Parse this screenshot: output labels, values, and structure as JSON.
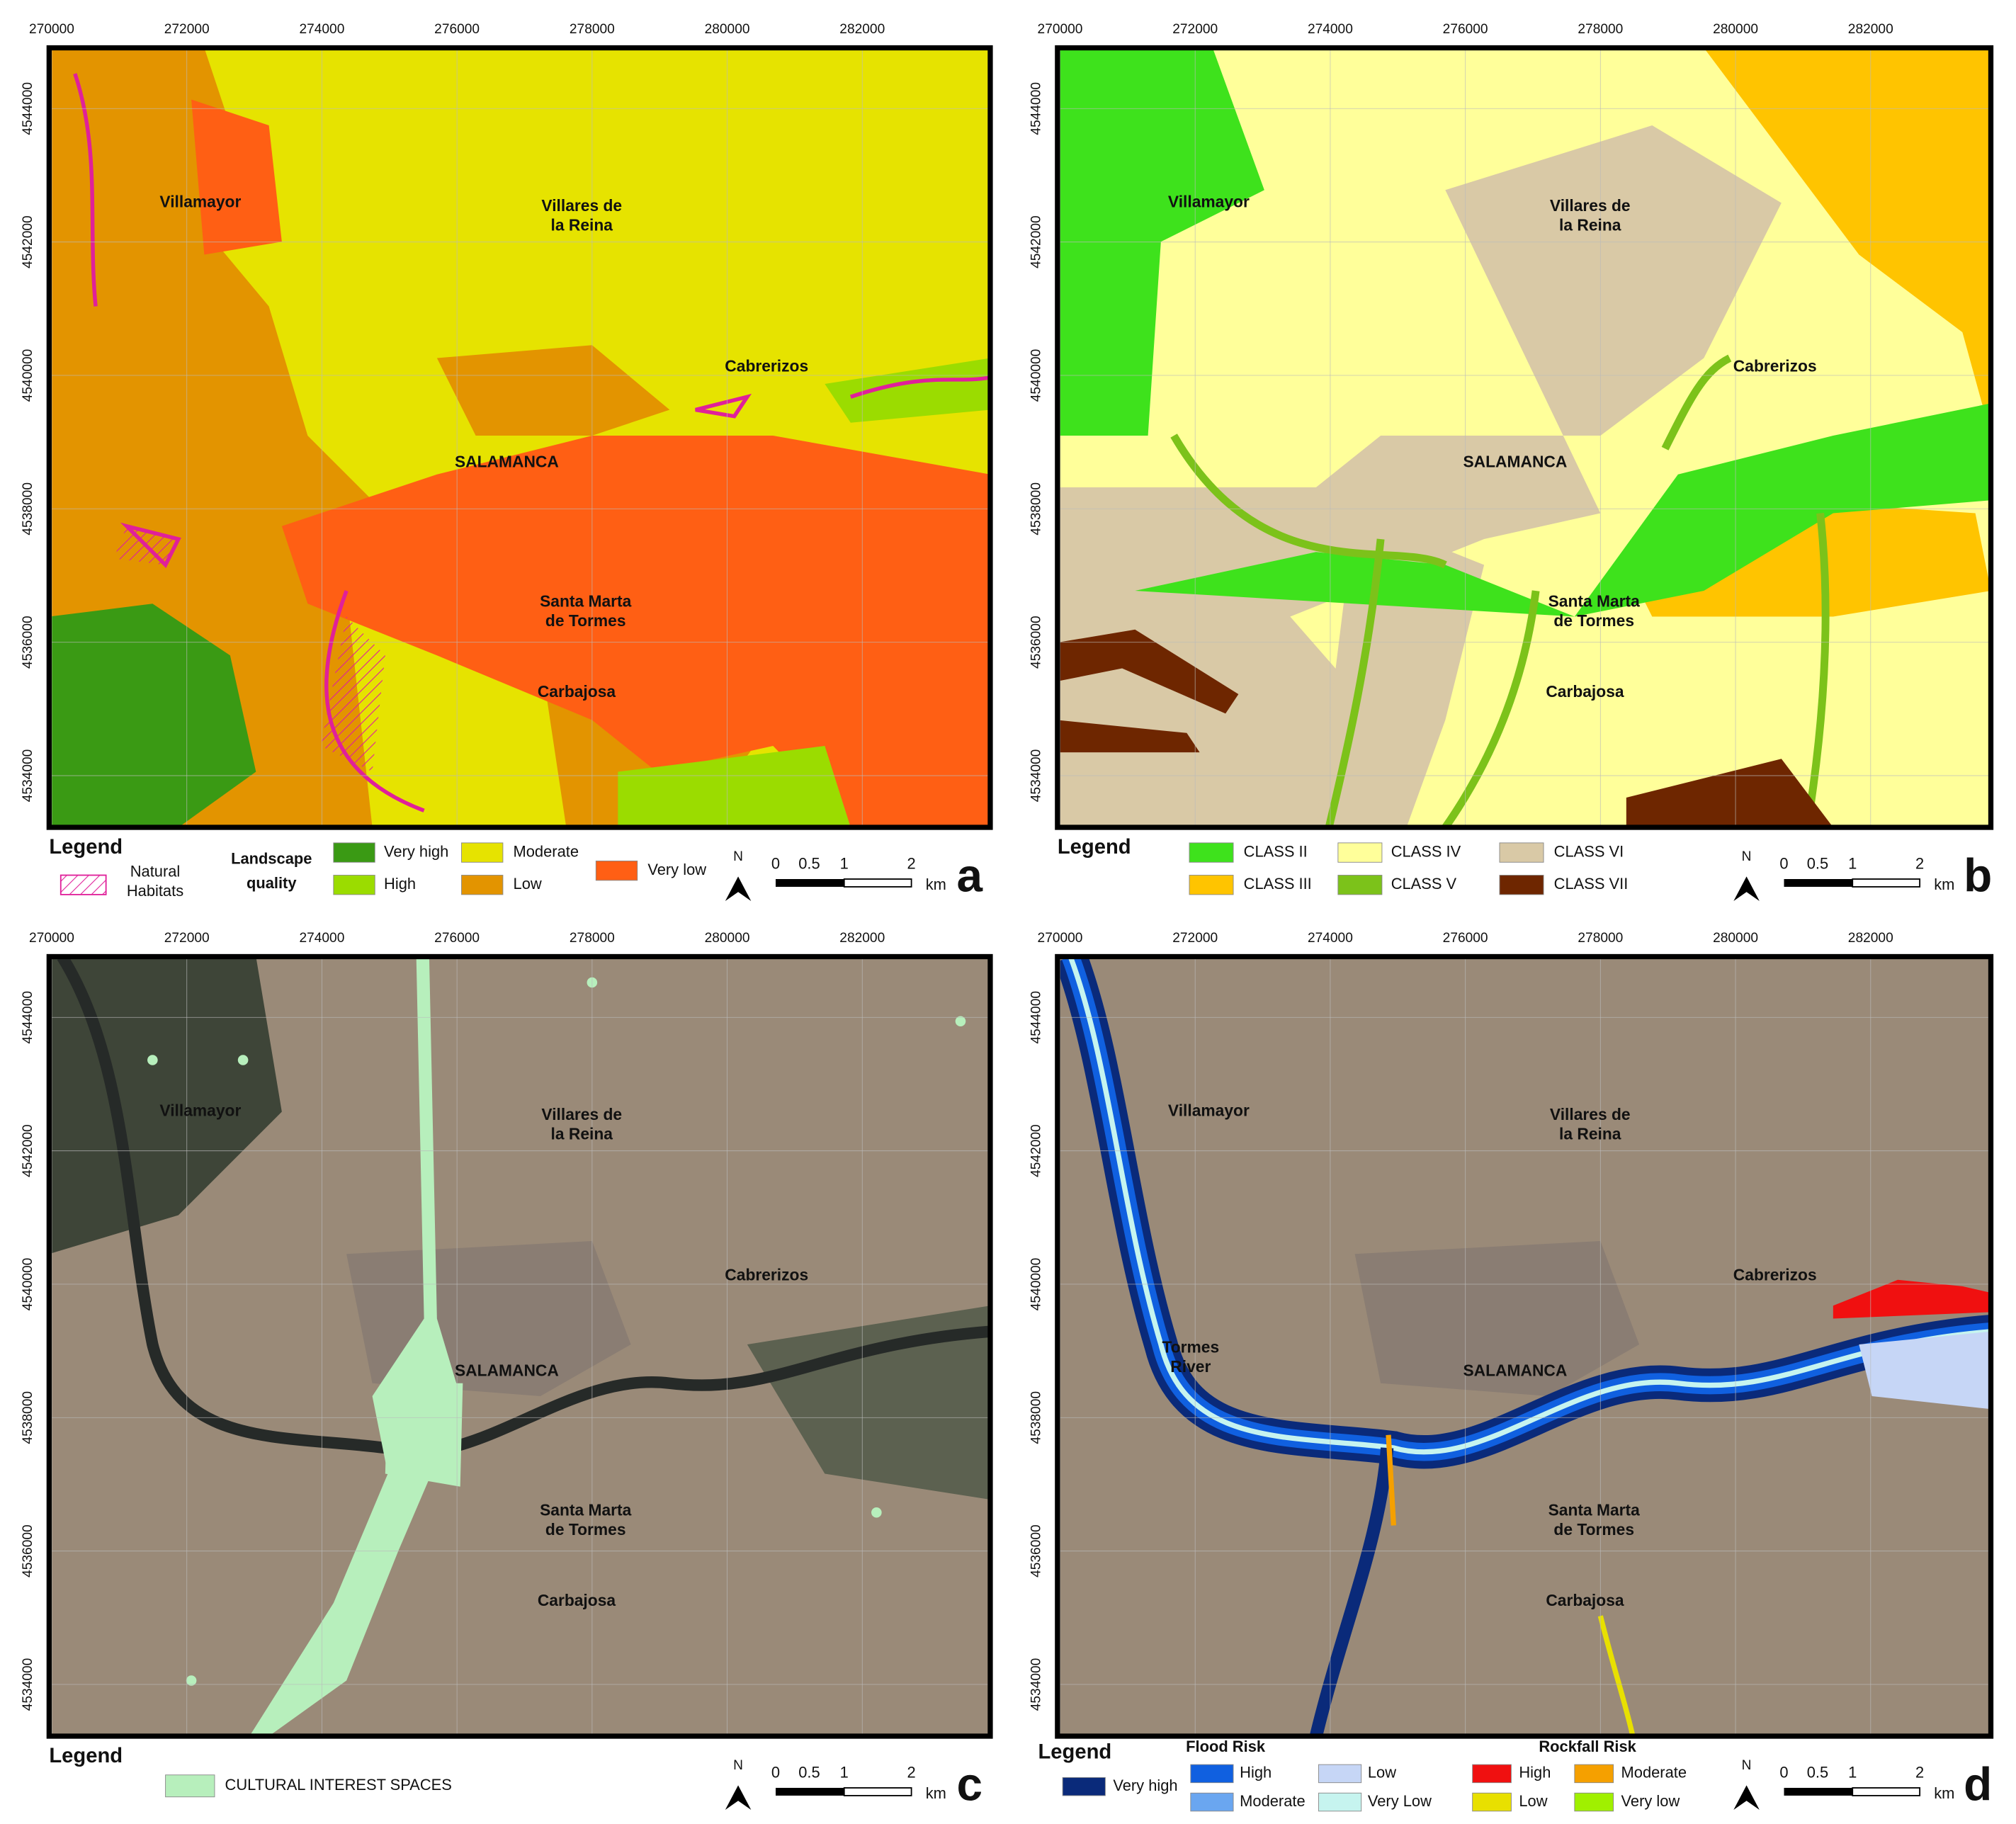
{
  "x_ticks": [
    "270000",
    "272000",
    "274000",
    "276000",
    "278000",
    "280000",
    "282000"
  ],
  "y_ticks": [
    "4544000",
    "4542000",
    "4540000",
    "4538000",
    "4536000",
    "4534000"
  ],
  "places": [
    [
      "Villamayor"
    ],
    [
      "Villares de",
      "la Reina"
    ],
    [
      "Cabrerizos"
    ],
    [
      "SALAMANCA"
    ],
    [
      "Santa Marta",
      "de Tormes"
    ],
    [
      "Carbajosa"
    ]
  ],
  "river_label": [
    "Tormes",
    "River"
  ],
  "scale_bar": {
    "north": "N",
    "labels": [
      "0",
      "0.5",
      "1",
      "2"
    ],
    "unit": "km"
  },
  "panels": [
    {
      "letter": "a",
      "legend": {
        "title": "Legend",
        "habitats": [
          "Natural",
          "Habitats"
        ],
        "habitats_color": "#e0209a",
        "quality_title": [
          "Landscape",
          "quality"
        ],
        "items": [
          {
            "label": "Very high",
            "color": "#3a9a14"
          },
          {
            "label": "High",
            "color": "#9bdc00"
          },
          {
            "label": "Moderate",
            "color": "#e6e300"
          },
          {
            "label": "Low",
            "color": "#e39400"
          },
          {
            "label": "Very low",
            "color": "#ff5f14"
          }
        ]
      }
    },
    {
      "letter": "b",
      "legend": {
        "title": "Legend",
        "items": [
          {
            "label": "CLASS II",
            "color": "#3ee21c"
          },
          {
            "label": "CLASS III",
            "color": "#ffc400"
          },
          {
            "label": "CLASS IV",
            "color": "#ffff9a"
          },
          {
            "label": "CLASS V",
            "color": "#7cc21a"
          },
          {
            "label": "CLASS VI",
            "color": "#d9c9a6"
          },
          {
            "label": "CLASS VII",
            "color": "#6e2600"
          }
        ]
      }
    },
    {
      "letter": "c",
      "legend": {
        "title": "Legend",
        "items": [
          {
            "label": "CULTURAL INTEREST SPACES",
            "color": "#b7efbc"
          }
        ]
      }
    },
    {
      "letter": "d",
      "legend": {
        "title": "Legend",
        "flood_title": "Flood Risk",
        "flood_items": [
          {
            "label": "Very high",
            "color": "#0a2a7a"
          },
          {
            "label": "High",
            "color": "#1060e0"
          },
          {
            "label": "Moderate",
            "color": "#6aa6f0"
          },
          {
            "label": "Low",
            "color": "#c6d6f6"
          },
          {
            "label": "Very Low",
            "color": "#c6f4ef"
          }
        ],
        "rockfall_title": "Rockfall Risk",
        "rockfall_items": [
          {
            "label": "High",
            "color": "#f01010"
          },
          {
            "label": "Moderate",
            "color": "#f5a000"
          },
          {
            "label": "Low",
            "color": "#e8e000"
          },
          {
            "label": "Very low",
            "color": "#a0f000"
          }
        ]
      }
    }
  ]
}
